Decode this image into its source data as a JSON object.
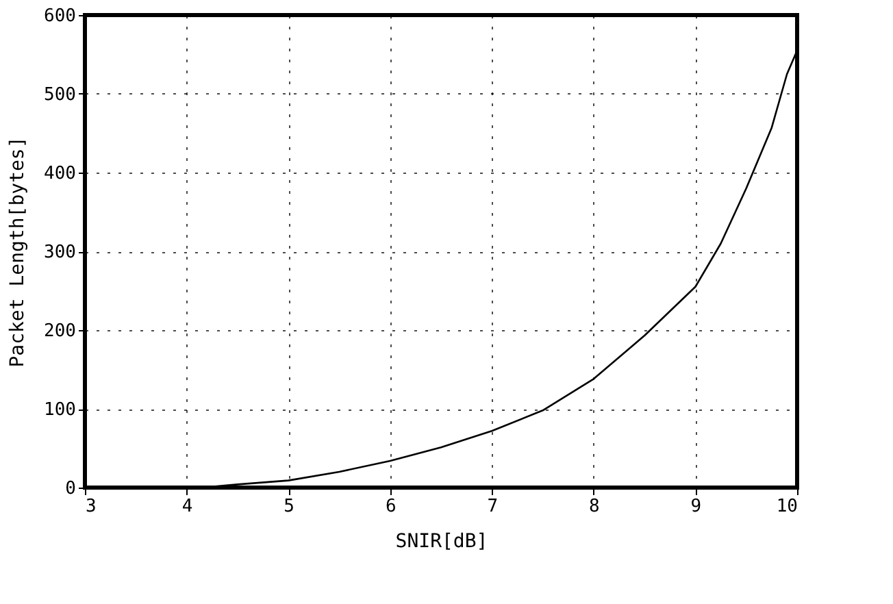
{
  "chart_data": {
    "type": "line",
    "xlabel": "SNIR[dB]",
    "ylabel": "Packet Length[bytes]",
    "x": [
      4.15,
      4.5,
      5,
      5.5,
      6,
      6.5,
      7,
      7.5,
      8,
      8.5,
      9,
      9.25,
      9.5,
      9.75,
      9.9,
      10
    ],
    "series": [
      {
        "color": "#000000",
        "values": [
          0,
          4,
          9,
          20,
          34,
          51,
          72,
          98,
          138,
          193,
          255,
          310,
          380,
          457,
          525,
          555
        ]
      }
    ],
    "xlim": [
      3,
      10
    ],
    "xticks": [
      3,
      4,
      5,
      6,
      7,
      8,
      9,
      10
    ],
    "ylim": [
      0,
      600
    ],
    "yticks": [
      0,
      100,
      200,
      300,
      400,
      500,
      600
    ],
    "grid": true,
    "marker": "none",
    "line_style": "solid"
  }
}
